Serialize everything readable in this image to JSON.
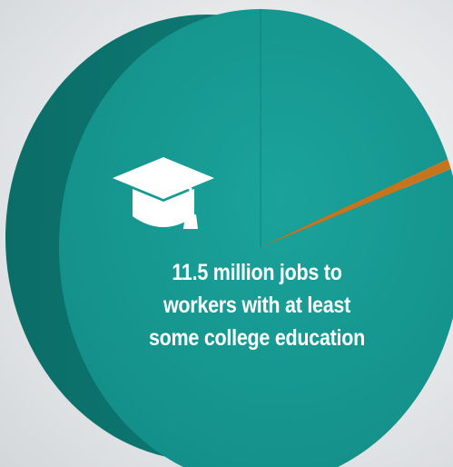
{
  "chart_data": {
    "type": "pie",
    "slices": [
      {
        "label": "11.5 million jobs to workers with at least some college education",
        "value": 11.5,
        "color": "#14948d"
      },
      {
        "label": "",
        "value": 0.08,
        "color": "#c8741c"
      }
    ],
    "units": "million jobs",
    "title": "",
    "legend": "none"
  },
  "annotation": {
    "lines": [
      "11.5 million jobs to",
      "workers with at least",
      "some college education"
    ]
  },
  "icons": {
    "annotation_icon": "graduation-cap-icon"
  },
  "colors": {
    "slice_main_top": "#14948d",
    "slice_main_side": "#0f7872",
    "slice_small": "#c8741c",
    "text": "#ffffff"
  }
}
